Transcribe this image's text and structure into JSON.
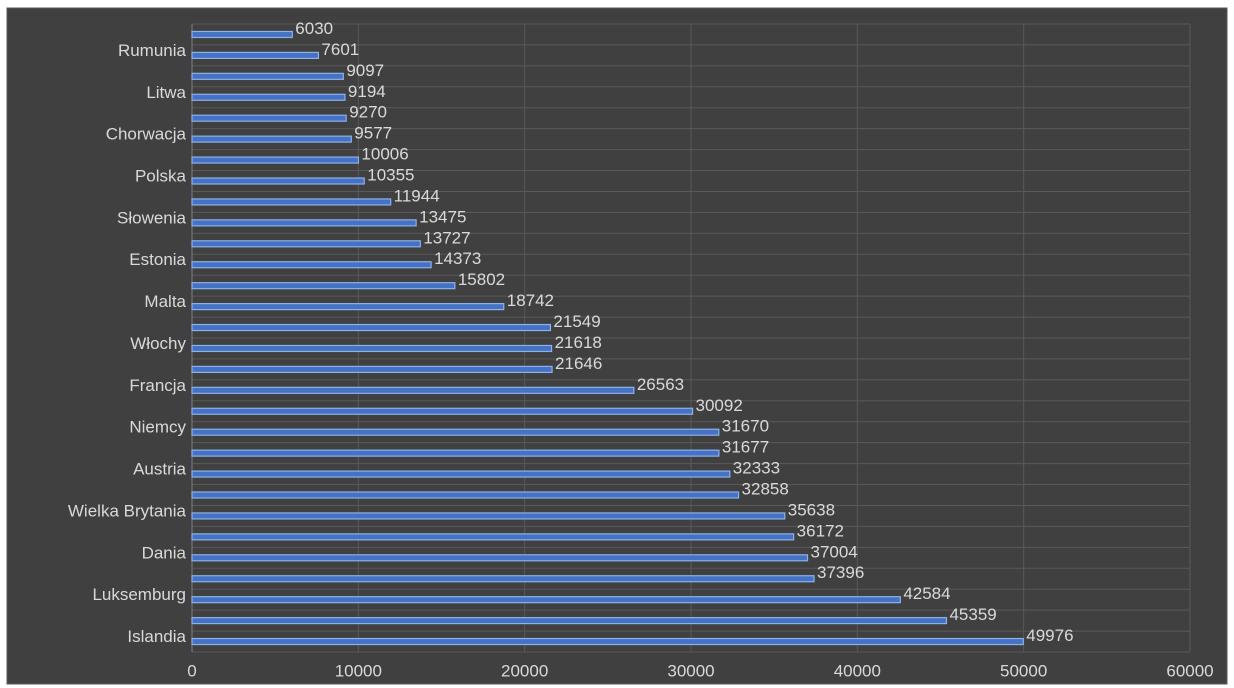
{
  "chart_data": {
    "type": "barh",
    "categories": [
      null,
      "Rumunia",
      null,
      "Litwa",
      null,
      "Chorwacja",
      null,
      "Polska",
      null,
      "Słowenia",
      null,
      "Estonia",
      null,
      "Malta",
      null,
      "Włochy",
      null,
      "Francja",
      null,
      "Niemcy",
      null,
      "Austria",
      null,
      "Wielka Brytania",
      null,
      "Dania",
      null,
      "Luksemburg",
      null,
      "Islandia"
    ],
    "values": [
      6030,
      7601,
      9097,
      9194,
      9270,
      9577,
      10006,
      10355,
      11944,
      13475,
      13727,
      14373,
      15802,
      18742,
      21549,
      21618,
      21646,
      26563,
      30092,
      31670,
      31677,
      32333,
      32858,
      35638,
      36172,
      37004,
      37396,
      42584,
      45359,
      49976
    ],
    "color": "#4472c4",
    "xlim": [
      0,
      60000
    ],
    "xticks": [
      0,
      10000,
      20000,
      30000,
      40000,
      50000,
      60000
    ],
    "grid": true
  }
}
